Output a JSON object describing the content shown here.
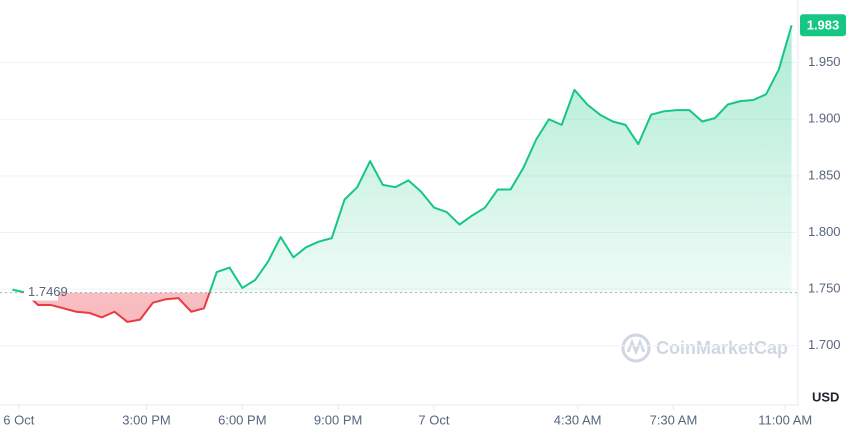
{
  "chart_data": {
    "type": "line",
    "watermark": "CoinMarketCap",
    "y_unit": "USD",
    "baseline": 1.7469,
    "up_color": "#16c784",
    "down_color": "#ea3943",
    "grid": true,
    "xlim": [
      10.6,
      35.4
    ],
    "xticks": [
      {
        "value": 11,
        "label": "6 Oct"
      },
      {
        "value": 15,
        "label": "3:00 PM"
      },
      {
        "value": 18,
        "label": "6:00 PM"
      },
      {
        "value": 21,
        "label": "9:00 PM"
      },
      {
        "value": 24,
        "label": "7 Oct"
      },
      {
        "value": 28.5,
        "label": "4:30 AM"
      },
      {
        "value": 31.5,
        "label": "7:30 AM"
      },
      {
        "value": 35,
        "label": "11:00 AM"
      }
    ],
    "ylim": [
      1.66,
      2.0
    ],
    "yticks": [
      {
        "value": 1.7,
        "label": "1.700"
      },
      {
        "value": 1.75,
        "label": "1.750"
      },
      {
        "value": 1.8,
        "label": "1.800"
      },
      {
        "value": 1.85,
        "label": "1.850"
      },
      {
        "value": 1.9,
        "label": "1.900"
      },
      {
        "value": 1.95,
        "label": "1.950"
      }
    ],
    "x": [
      10.8,
      11.2,
      11.6,
      12,
      12.4,
      12.8,
      13.2,
      13.6,
      14,
      14.4,
      14.8,
      15.2,
      15.6,
      16,
      16.4,
      16.8,
      17.2,
      17.6,
      18,
      18.4,
      18.8,
      19.2,
      19.6,
      20,
      20.4,
      20.8,
      21.2,
      21.6,
      22,
      22.4,
      22.8,
      23.2,
      23.6,
      24,
      24.4,
      24.8,
      25.2,
      25.6,
      26,
      26.4,
      26.8,
      27.2,
      27.6,
      28,
      28.4,
      28.8,
      29.2,
      29.6,
      30,
      30.4,
      30.8,
      31.2,
      31.6,
      32,
      32.4,
      32.8,
      33.2,
      33.6,
      34,
      34.4,
      34.8,
      35.2
    ],
    "series": [
      {
        "values": [
          1.7495,
          1.747,
          1.736,
          1.736,
          1.733,
          1.73,
          1.729,
          1.725,
          1.73,
          1.721,
          1.723,
          1.738,
          1.741,
          1.742,
          1.73,
          1.733,
          1.765,
          1.769,
          1.751,
          1.758,
          1.774,
          1.796,
          1.778,
          1.787,
          1.792,
          1.795,
          1.829,
          1.84,
          1.863,
          1.842,
          1.84,
          1.846,
          1.836,
          1.822,
          1.818,
          1.807,
          1.815,
          1.822,
          1.838,
          1.838,
          1.857,
          1.882,
          1.9,
          1.895,
          1.926,
          1.913,
          1.904,
          1.898,
          1.895,
          1.878,
          1.904,
          1.907,
          1.908,
          1.908,
          1.898,
          1.901,
          1.913,
          1.916,
          1.917,
          1.922,
          1.944,
          1.983
        ]
      }
    ]
  }
}
